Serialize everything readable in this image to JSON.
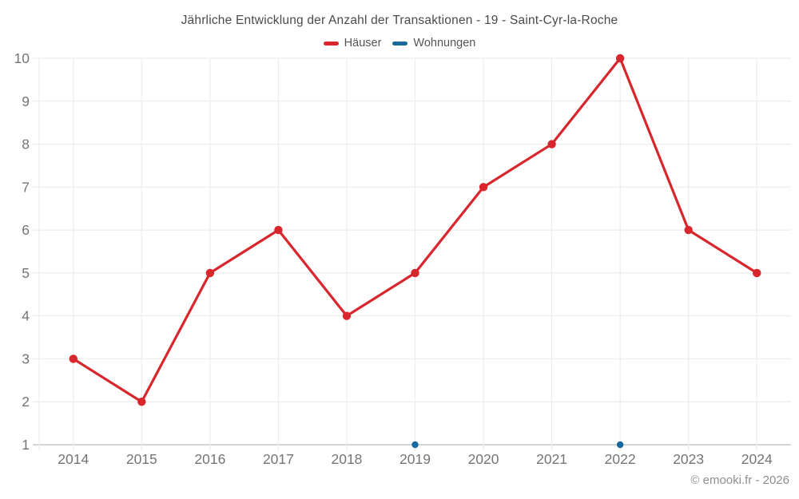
{
  "title": "Jährliche Entwicklung der Anzahl der Transaktionen - 19 - Saint-Cyr-la-Roche",
  "legend": {
    "items": [
      {
        "label": "Häuser",
        "color": "#d8262c"
      },
      {
        "label": "Wohnungen",
        "color": "#17699e"
      }
    ]
  },
  "footer": "© emooki.fr - 2026",
  "colors": {
    "grid": "#ececec",
    "axis": "#c6c6c6",
    "tick_label": "#757575",
    "title_text": "#4a4a4a",
    "footer_text": "#8e8e8e"
  },
  "chart_data": {
    "type": "line",
    "title": "Jährliche Entwicklung der Anzahl der Transaktionen - 19 - Saint-Cyr-la-Roche",
    "categories": [
      "2014",
      "2015",
      "2016",
      "2017",
      "2018",
      "2019",
      "2020",
      "2021",
      "2022",
      "2023",
      "2024"
    ],
    "series": [
      {
        "name": "Häuser",
        "color": "#d8262c",
        "values": [
          3,
          2,
          5,
          6,
          4,
          5,
          7,
          8,
          10,
          6,
          5
        ]
      },
      {
        "name": "Wohnungen",
        "color": "#17699e",
        "values": [
          null,
          null,
          null,
          null,
          null,
          1,
          null,
          null,
          1,
          null,
          null
        ]
      }
    ],
    "ylim": [
      1,
      10
    ],
    "yticks": [
      1,
      2,
      3,
      4,
      5,
      6,
      7,
      8,
      9,
      10
    ],
    "xlabel": "",
    "ylabel": "",
    "grid": true,
    "legend_position": "top"
  }
}
